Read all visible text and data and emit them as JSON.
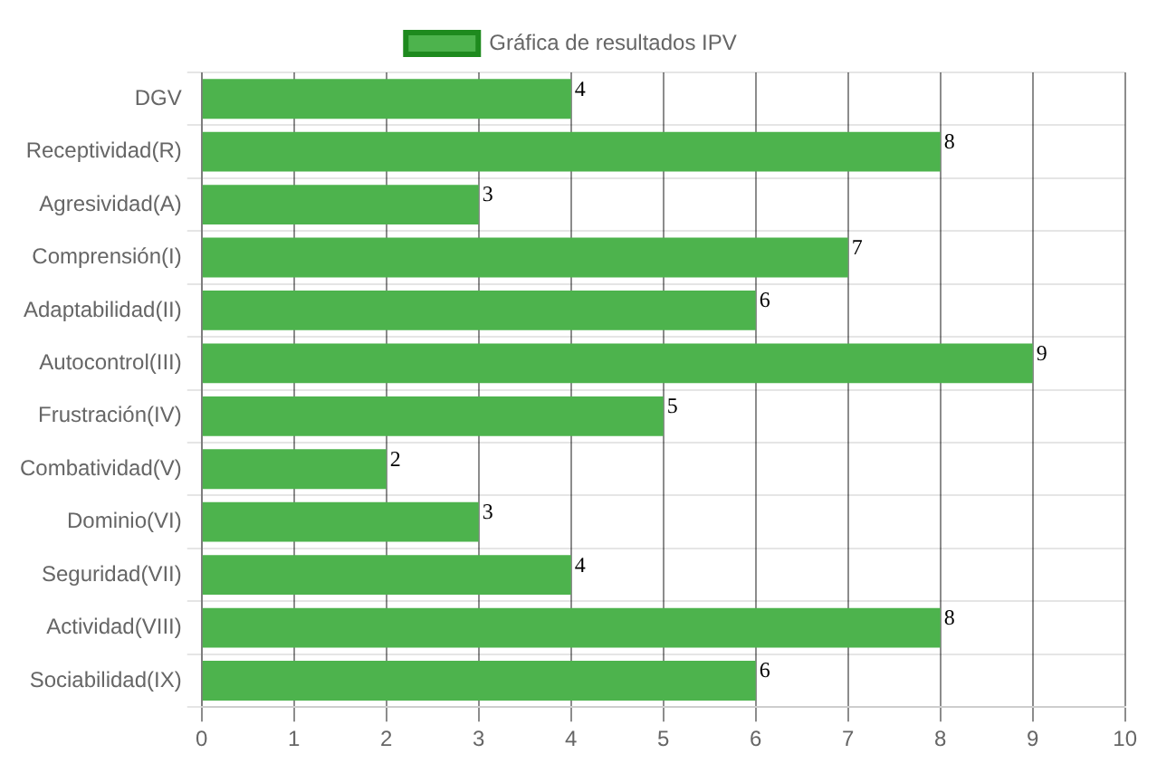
{
  "chart_data": {
    "type": "bar",
    "orientation": "horizontal",
    "categories": [
      "DGV",
      "Receptividad(R)",
      "Agresividad(A)",
      "Comprensión(I)",
      "Adaptabilidad(II)",
      "Autocontrol(III)",
      "Frustración(IV)",
      "Combatividad(V)",
      "Dominio(VI)",
      "Seguridad(VII)",
      "Actividad(VIII)",
      "Sociabilidad(IX)"
    ],
    "series": [
      {
        "name": "Gráfica de resultados IPV",
        "color": "#4db34d",
        "values": [
          4,
          8,
          3,
          7,
          6,
          9,
          5,
          2,
          3,
          4,
          8,
          6
        ]
      }
    ],
    "xlim": [
      0,
      10
    ],
    "xticks": [
      0,
      1,
      2,
      3,
      4,
      5,
      6,
      7,
      8,
      9,
      10
    ],
    "grid": true,
    "legend": "top",
    "data_labels": true
  }
}
